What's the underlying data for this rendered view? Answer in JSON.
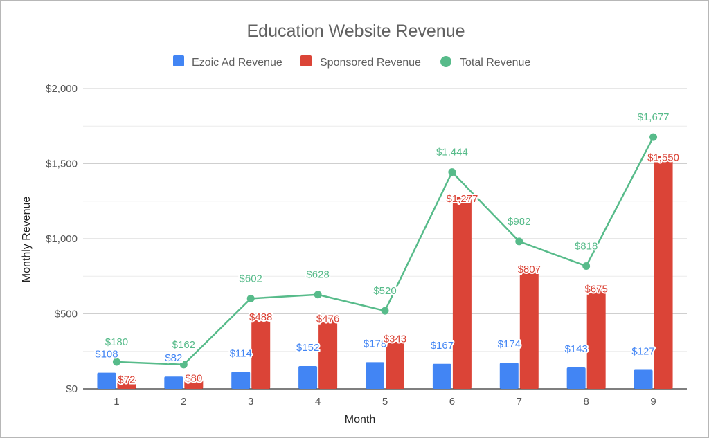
{
  "chart_data": {
    "type": "bar",
    "title": "Education Website Revenue",
    "xlabel": "Month",
    "ylabel": "Monthly Revenue",
    "categories": [
      "1",
      "2",
      "3",
      "4",
      "5",
      "6",
      "7",
      "8",
      "9"
    ],
    "ylim": [
      0,
      2000
    ],
    "yticks": [
      {
        "value": 0,
        "label": "$0"
      },
      {
        "value": 500,
        "label": "$500"
      },
      {
        "value": 1000,
        "label": "$1,000"
      },
      {
        "value": 1500,
        "label": "$1,500"
      },
      {
        "value": 2000,
        "label": "$2,000"
      }
    ],
    "grid": true,
    "legend_position": "top",
    "series": [
      {
        "name": "Ezoic Ad Revenue",
        "type": "bar",
        "color": "#4285f4",
        "values": [
          108,
          82,
          114,
          152,
          178,
          167,
          174,
          143,
          127
        ],
        "labels": [
          "$108",
          "$82",
          "$114",
          "$152",
          "$178",
          "$167",
          "$174",
          "$143",
          "$127"
        ]
      },
      {
        "name": "Sponsored Revenue",
        "type": "bar",
        "color": "#db4437",
        "values": [
          72,
          80,
          488,
          476,
          343,
          1277,
          807,
          675,
          1550
        ],
        "labels": [
          "$72",
          "$80",
          "$488",
          "$476",
          "$343",
          "$1,277",
          "$807",
          "$675",
          "$1,550"
        ]
      },
      {
        "name": "Total Revenue",
        "type": "line",
        "color": "#57bb8a",
        "values": [
          180,
          162,
          602,
          628,
          520,
          1444,
          982,
          818,
          1677
        ],
        "labels": [
          "$180",
          "$162",
          "$602",
          "$628",
          "$520",
          "$1,444",
          "$982",
          "$818",
          "$1,677"
        ]
      }
    ]
  }
}
